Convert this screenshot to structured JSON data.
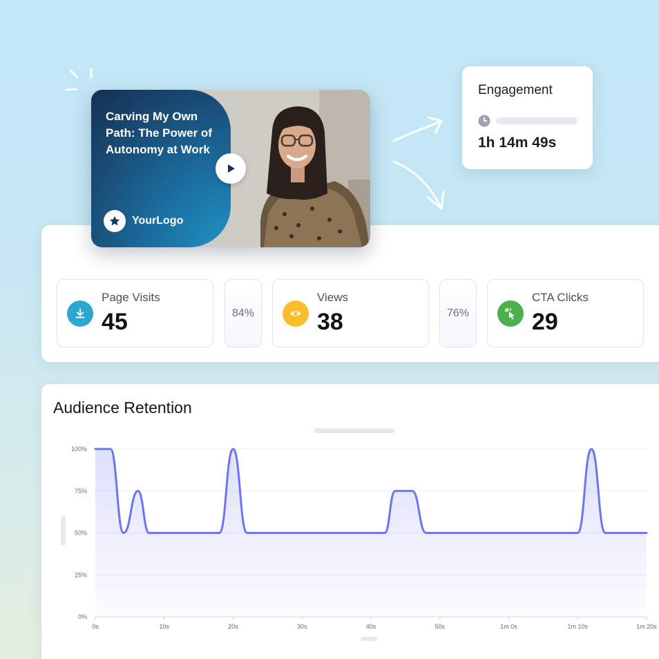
{
  "video": {
    "title": "Carving My Own Path: The Power of Autonomy at Work",
    "logo_text": "YourLogo",
    "accent": "#1b6d9f"
  },
  "engagement": {
    "title": "Engagement",
    "value": "1h 14m 49s"
  },
  "stats": {
    "page_visits": {
      "label": "Page Visits",
      "value": "45",
      "icon": "download-icon",
      "color": "#2ba7d2"
    },
    "visits_to_views_pct": "84%",
    "views": {
      "label": "Views",
      "value": "38",
      "icon": "eye-icon",
      "color": "#fbbd2b"
    },
    "views_to_clicks_pct": "76%",
    "cta_clicks": {
      "label": "CTA Clicks",
      "value": "29",
      "icon": "cursor-click-icon",
      "color": "#4cb04c"
    }
  },
  "retention": {
    "title": "Audience Retention"
  },
  "chart_data": {
    "type": "area",
    "color": "#6c74ee",
    "y_tick_labels": [
      "0%",
      "25%",
      "50%",
      "75%",
      "100%"
    ],
    "x_tick_labels": [
      "0s",
      "10s",
      "20s",
      "30s",
      "40s",
      "50s",
      "1m 0s",
      "1m 10s",
      "1m 20s"
    ],
    "xlim": [
      0,
      80
    ],
    "ylim": [
      0,
      100
    ],
    "grid": true,
    "x": [
      0,
      2.2,
      4.1,
      6.2,
      7.8,
      18.0,
      20.0,
      22.0,
      42.0,
      43.5,
      46.0,
      48.0,
      70.0,
      72.0,
      74.0,
      80.0
    ],
    "y": [
      100,
      100,
      50,
      75,
      50,
      50,
      100,
      50,
      50,
      75,
      75,
      50,
      50,
      100,
      50,
      50
    ]
  }
}
